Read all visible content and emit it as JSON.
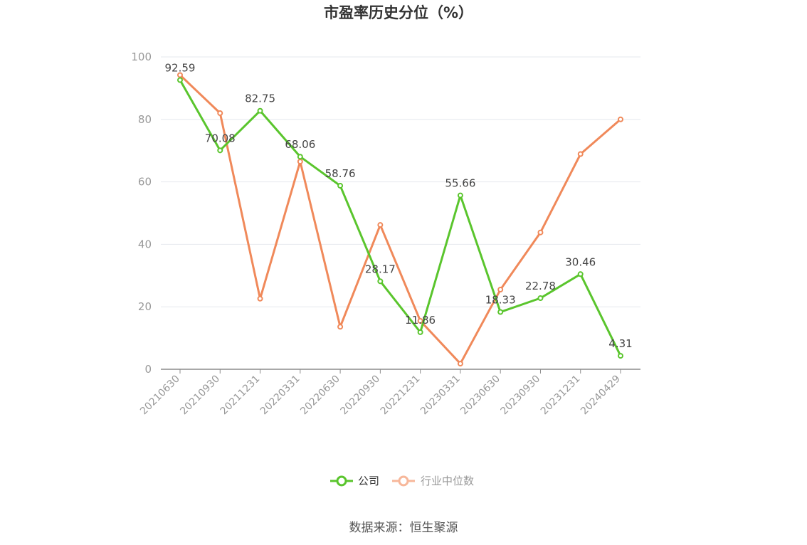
{
  "chart_data": {
    "type": "line",
    "title": "市盈率历史分位（%）",
    "categories": [
      "20210630",
      "20210930",
      "20211231",
      "20220331",
      "20220630",
      "20220930",
      "20221231",
      "20230331",
      "20230630",
      "20230930",
      "20231231",
      "20240429"
    ],
    "ylim": [
      0,
      100
    ],
    "yticks": [
      0,
      20,
      40,
      60,
      80,
      100
    ],
    "grid": true,
    "legend_position": "bottom",
    "series": [
      {
        "name": "公司",
        "color": "#5ac52d",
        "values": [
          92.59,
          70.08,
          82.75,
          68.06,
          58.76,
          28.17,
          11.86,
          55.66,
          18.33,
          22.78,
          30.46,
          4.31
        ],
        "labels": [
          "92.59",
          "70.08",
          "82.75",
          "68.06",
          "58.76",
          "28.17",
          "11.86",
          "55.66",
          "18.33",
          "22.78",
          "30.46",
          "4.31"
        ]
      },
      {
        "name": "行业中位数",
        "color": "#f0895a",
        "values": [
          94.2,
          82.0,
          22.6,
          66.5,
          13.6,
          46.2,
          15.5,
          1.8,
          25.5,
          43.8,
          68.9,
          80.0
        ]
      }
    ]
  },
  "source": "数据来源：恒生聚源"
}
